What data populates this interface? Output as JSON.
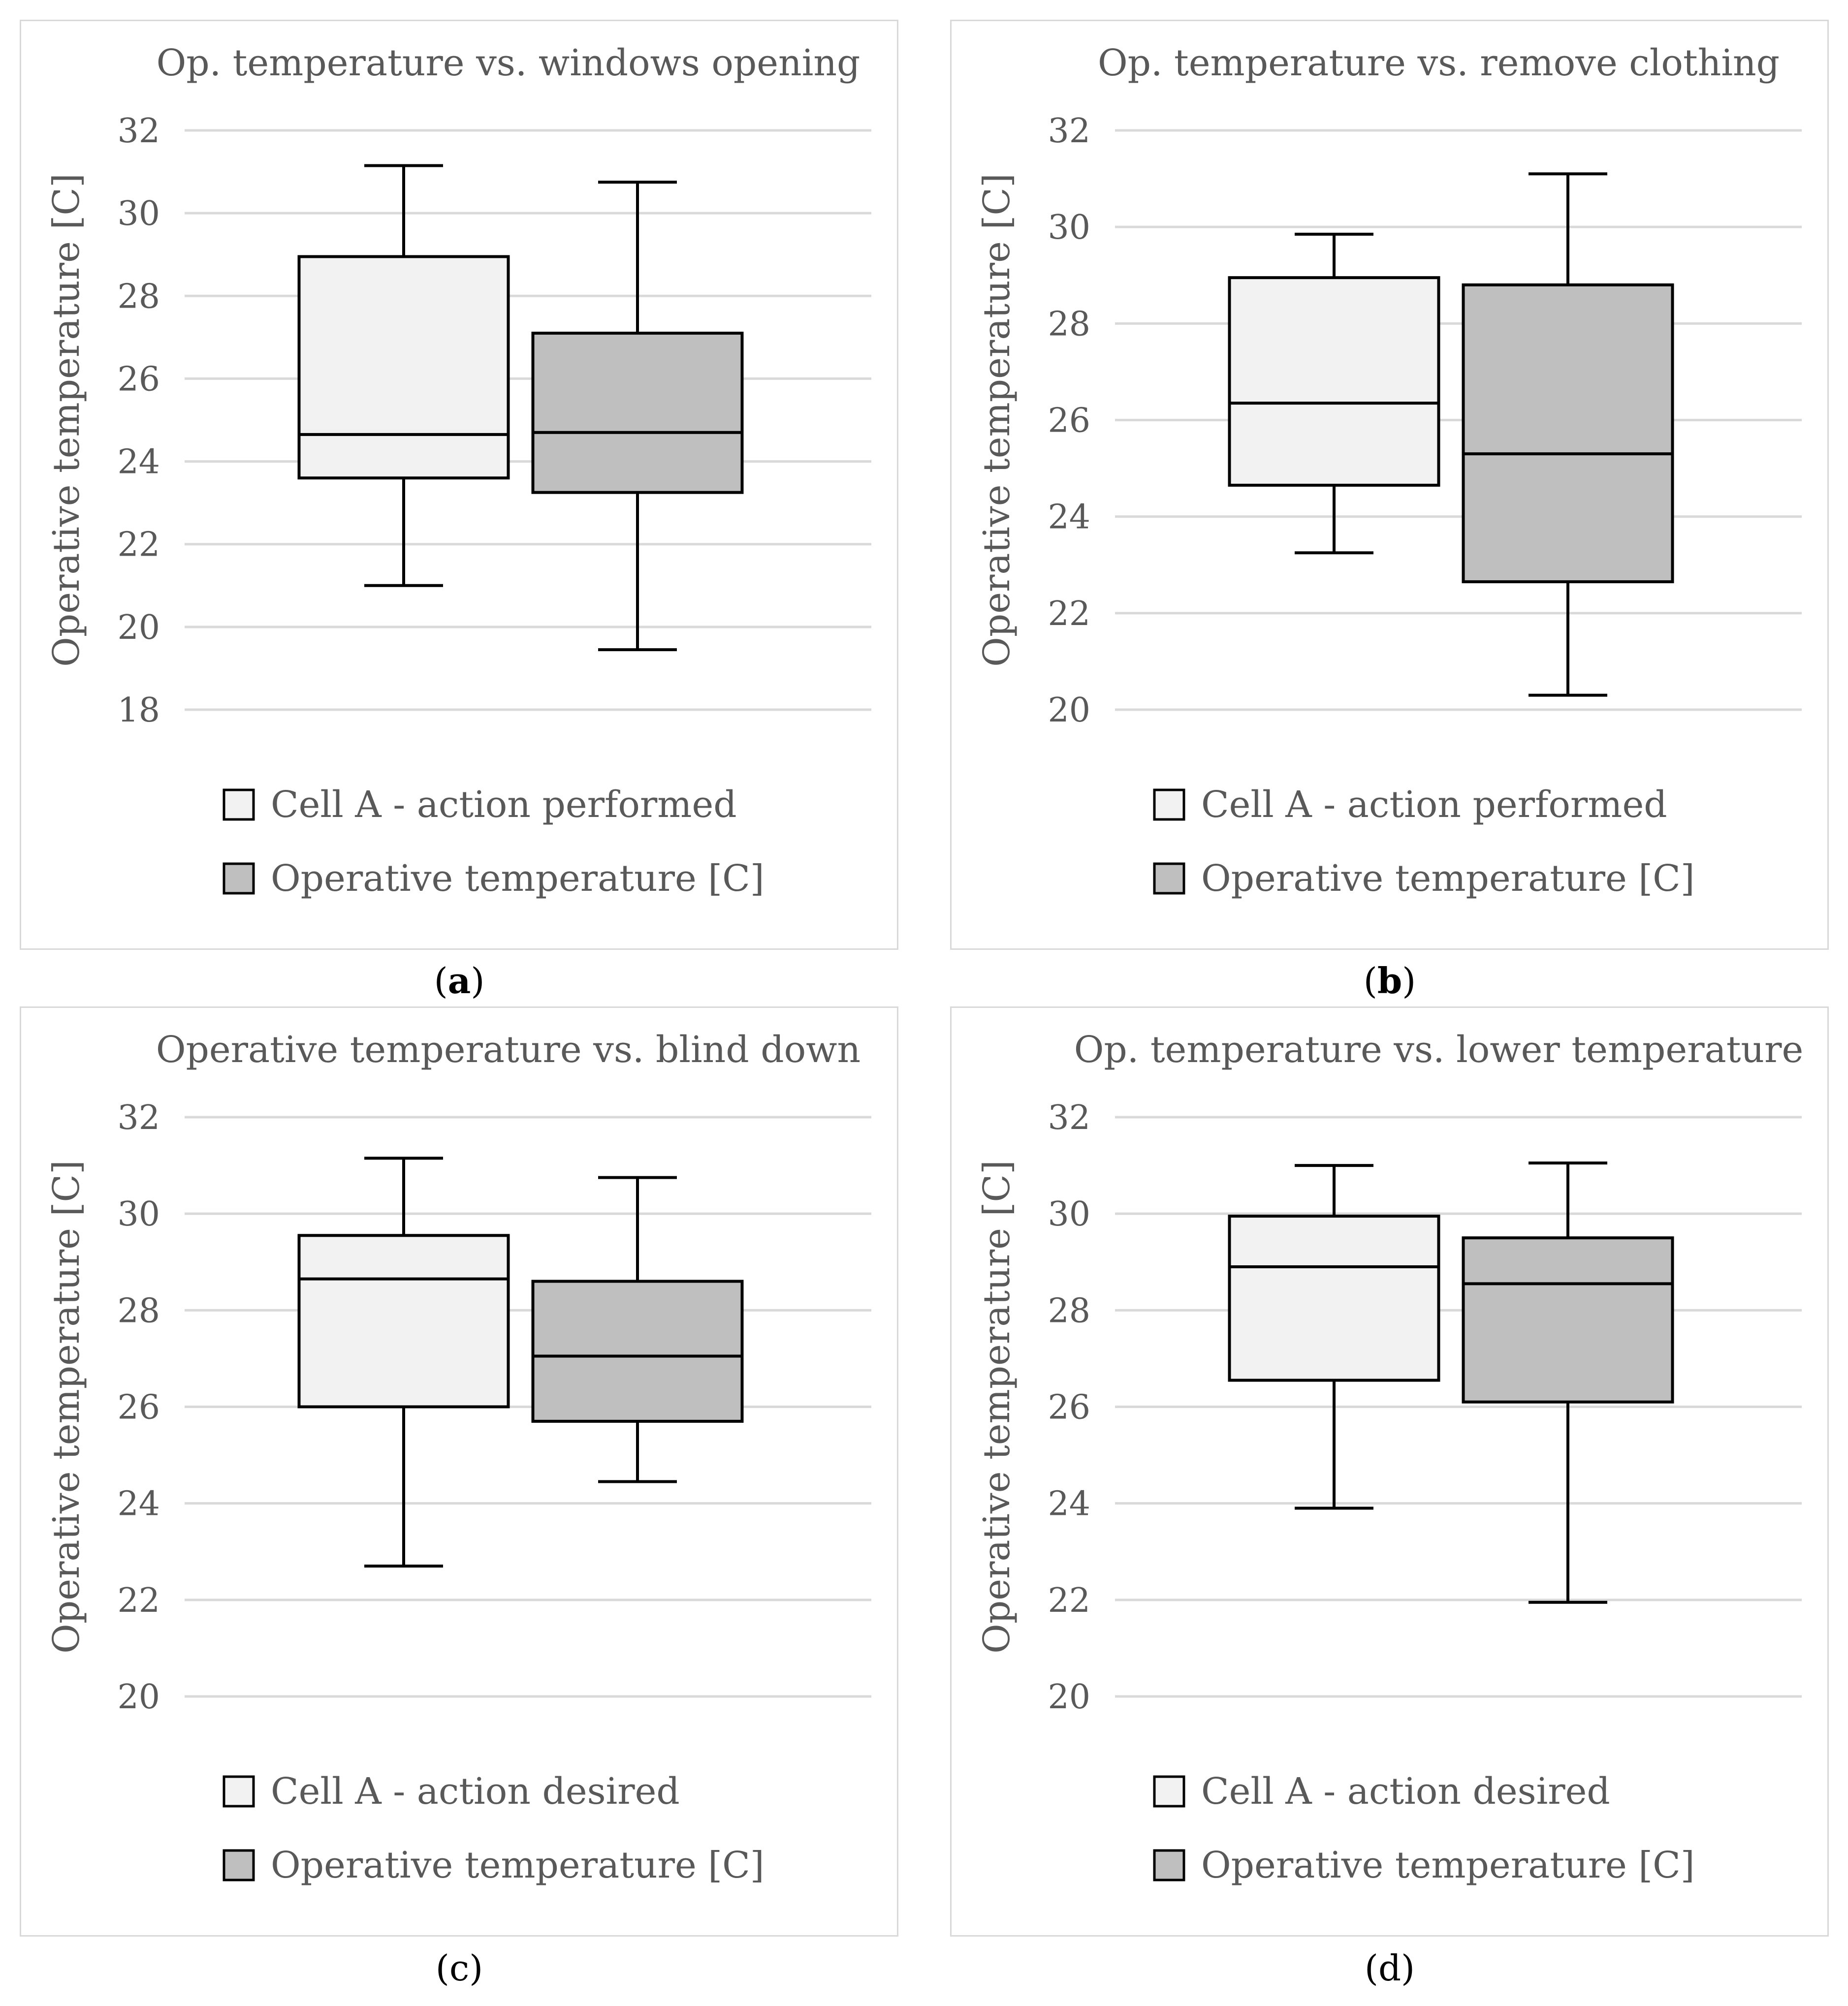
{
  "chart_data": [
    {
      "type": "boxplot",
      "panel": "a",
      "title": "Op. temperature vs. windows opening",
      "ylabel": "Operative temperature [C]",
      "ylim": [
        18,
        32
      ],
      "yticks": [
        18,
        20,
        22,
        24,
        26,
        28,
        30,
        32
      ],
      "series": [
        {
          "name": "Cell A - action performed",
          "color": "#f2f2f2",
          "min": 21.0,
          "q1": 23.6,
          "median": 24.65,
          "q3": 28.95,
          "max": 31.15
        },
        {
          "name": "Operative temperature [C]",
          "color": "#bfbfbf",
          "min": 19.45,
          "q1": 23.25,
          "median": 24.7,
          "q3": 27.1,
          "max": 30.75
        }
      ]
    },
    {
      "type": "boxplot",
      "panel": "b",
      "title": "Op. temperature vs. remove clothing",
      "ylabel": "Operative temperature [C]",
      "ylim": [
        20,
        32
      ],
      "yticks": [
        20,
        22,
        24,
        26,
        28,
        30,
        32
      ],
      "series": [
        {
          "name": "Cell A - action performed",
          "color": "#f2f2f2",
          "min": 23.25,
          "q1": 24.65,
          "median": 26.35,
          "q3": 28.95,
          "max": 29.85
        },
        {
          "name": "Operative temperature [C]",
          "color": "#bfbfbf",
          "min": 20.3,
          "q1": 22.65,
          "median": 25.3,
          "q3": 28.8,
          "max": 31.1
        }
      ]
    },
    {
      "type": "boxplot",
      "panel": "c",
      "title": "Operative temperature vs. blind down",
      "ylabel": "Operative temperature [C]",
      "ylim": [
        20,
        32
      ],
      "yticks": [
        20,
        22,
        24,
        26,
        28,
        30,
        32
      ],
      "series": [
        {
          "name": "Cell A - action desired",
          "color": "#f2f2f2",
          "min": 22.7,
          "q1": 26.0,
          "median": 28.65,
          "q3": 29.55,
          "max": 31.15
        },
        {
          "name": "Operative temperature [C]",
          "color": "#bfbfbf",
          "min": 24.45,
          "q1": 25.7,
          "median": 27.05,
          "q3": 28.6,
          "max": 30.75
        }
      ]
    },
    {
      "type": "boxplot",
      "panel": "d",
      "title": "Op. temperature vs. lower temperature",
      "ylabel": "Operative temperature [C]",
      "ylim": [
        20,
        32
      ],
      "yticks": [
        20,
        22,
        24,
        26,
        28,
        30,
        32
      ],
      "series": [
        {
          "name": "Cell A - action desired",
          "color": "#f2f2f2",
          "min": 23.9,
          "q1": 26.55,
          "median": 28.9,
          "q3": 29.95,
          "max": 31.0
        },
        {
          "name": "Operative temperature [C]",
          "color": "#bfbfbf",
          "min": 21.95,
          "q1": 26.1,
          "median": 28.55,
          "q3": 29.5,
          "max": 31.05
        }
      ]
    }
  ],
  "captions": [
    "a",
    "b",
    "c",
    "d"
  ]
}
